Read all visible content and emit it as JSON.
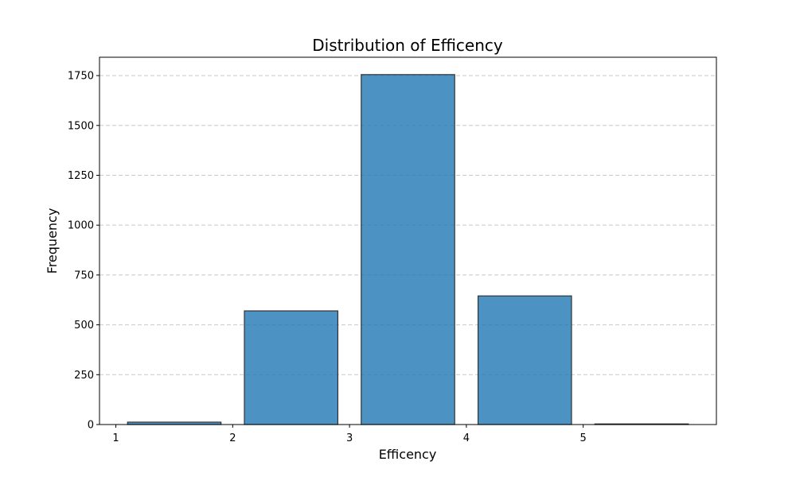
{
  "chart_data": {
    "type": "bar",
    "title": "Distribution of Efficency",
    "xlabel": "Efficency",
    "ylabel": "Frequency",
    "bins": [
      {
        "start": 1,
        "end": 2,
        "value": 12
      },
      {
        "start": 2,
        "end": 3,
        "value": 570
      },
      {
        "start": 3,
        "end": 4,
        "value": 1755
      },
      {
        "start": 4,
        "end": 5,
        "value": 645
      },
      {
        "start": 5,
        "end": 6,
        "value": 3
      }
    ],
    "bar_fraction": 0.8,
    "xlim": [
      0.86,
      6.14
    ],
    "ylim": [
      0,
      1842
    ],
    "xticks": [
      1,
      2,
      3,
      4,
      5
    ],
    "yticks": [
      0,
      250,
      500,
      750,
      1000,
      1250,
      1500,
      1750
    ],
    "grid": "y-dashed",
    "bar_color": "#1f77b4",
    "edge_color": "#333333"
  }
}
